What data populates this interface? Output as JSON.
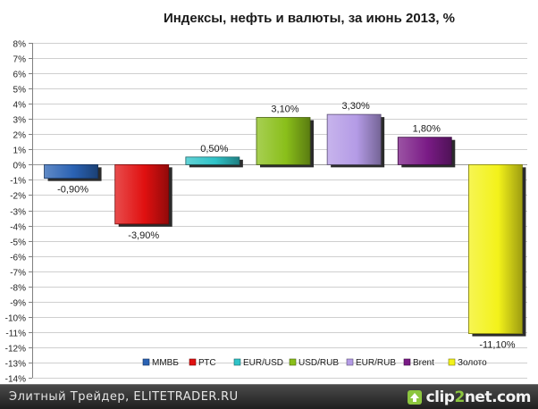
{
  "chart_data": {
    "type": "bar",
    "title": "Индексы, нефть и валюты, за июнь 2013, %",
    "categories": [
      "ММВБ",
      "РТС",
      "EUR/USD",
      "USD/RUB",
      "EUR/RUB",
      "Brent",
      "Золото"
    ],
    "values": [
      -0.9,
      -3.9,
      0.5,
      3.1,
      3.3,
      1.8,
      -11.1
    ],
    "data_labels": [
      "-0,90%",
      "-3,90%",
      "0,50%",
      "3,10%",
      "3,30%",
      "1,80%",
      "-11,10%"
    ],
    "colors": [
      "#2a62b3",
      "#e01010",
      "#2fc3c8",
      "#8abf1a",
      "#b49be6",
      "#7a1b86",
      "#f3f21a"
    ],
    "ylim": [
      -14,
      8
    ],
    "ytick_step": 1,
    "ytick_labels": [
      "8%",
      "7%",
      "6%",
      "5%",
      "4%",
      "3%",
      "2%",
      "1%",
      "0%",
      "-1%",
      "-2%",
      "-3%",
      "-4%",
      "-5%",
      "-6%",
      "-7%",
      "-8%",
      "-9%",
      "-10%",
      "-11%",
      "-12%",
      "-13%",
      "-14%"
    ],
    "grid": true,
    "legend_position": "bottom"
  },
  "footer": {
    "caption": "Элитный Трейдер, ELITETRADER.RU"
  },
  "watermark": {
    "text_a": "clip",
    "text_b": "2",
    "text_c": "net.com"
  }
}
